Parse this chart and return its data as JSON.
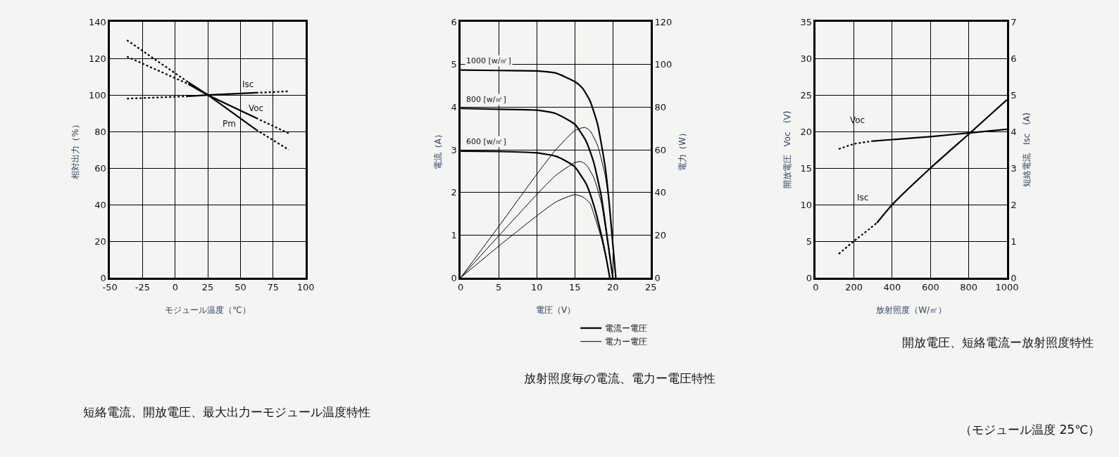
{
  "chart_data": [
    {
      "type": "line",
      "title": "短絡電流、開放電圧、最大出力ーモジュール温度特性",
      "xlabel": "モジュール温度（℃）",
      "ylabel": "相対出力（%）",
      "xlim": [
        -50,
        100
      ],
      "xticks": [
        -50,
        -25,
        0,
        25,
        50,
        75,
        100
      ],
      "ylim": [
        0,
        140
      ],
      "yticks": [
        0,
        20,
        40,
        60,
        80,
        100,
        120,
        140
      ],
      "grid": true,
      "marker": "none",
      "series": [
        {
          "color": "#000000",
          "line_style": "dotted",
          "x": [
            -37,
            10
          ],
          "values": [
            98,
            99.3
          ]
        },
        {
          "color": "#000000",
          "line_style": "solid",
          "x": [
            10,
            25,
            62
          ],
          "values": [
            99.3,
            100,
            101.2
          ]
        },
        {
          "color": "#000000",
          "line_style": "dotted",
          "x": [
            62,
            87
          ],
          "values": [
            101.2,
            102
          ]
        },
        {
          "color": "#000000",
          "line_style": "dotted",
          "x": [
            -37,
            10
          ],
          "values": [
            121,
            106
          ]
        },
        {
          "color": "#000000",
          "line_style": "solid",
          "x": [
            10,
            25,
            62
          ],
          "values": [
            106,
            100,
            87.4
          ]
        },
        {
          "color": "#000000",
          "line_style": "dotted",
          "x": [
            62,
            87
          ],
          "values": [
            87.4,
            79
          ]
        },
        {
          "color": "#000000",
          "line_style": "dotted",
          "x": [
            -37,
            10
          ],
          "values": [
            130,
            107
          ]
        },
        {
          "color": "#000000",
          "line_style": "solid",
          "x": [
            10,
            25,
            62
          ],
          "values": [
            107,
            100,
            81
          ]
        },
        {
          "color": "#000000",
          "line_style": "dotted",
          "x": [
            62,
            87
          ],
          "values": [
            81,
            70
          ]
        }
      ],
      "annotations": [
        {
          "text": "Isc",
          "x": 62,
          "y": 101.2
        },
        {
          "text": "Voc",
          "x": 62,
          "y": 87.4
        },
        {
          "text": "Pm",
          "x": 62,
          "y": 81
        }
      ]
    },
    {
      "type": "line",
      "title": "放射照度毎の電流、電力ー電圧特性",
      "xlabel": "電圧（V）",
      "ylabel": "電流（A）",
      "y2label": "電力（W）",
      "xlim": [
        0,
        25
      ],
      "xticks": [
        0,
        5,
        10,
        15,
        20,
        25
      ],
      "ylim": [
        0,
        6
      ],
      "yticks": [
        0,
        1,
        2,
        3,
        4,
        5,
        6
      ],
      "y2lim": [
        0,
        120
      ],
      "y2ticks": [
        0,
        20,
        40,
        60,
        80,
        100,
        120
      ],
      "grid": true,
      "marker": "none",
      "legend": "bottom right",
      "series": [
        {
          "name": "電流ー電圧",
          "color": "#000000",
          "line_style": "solid",
          "x": [
            0,
            5,
            10,
            12.5,
            15,
            16,
            17,
            18,
            19,
            19.5,
            20,
            20.4
          ],
          "values": [
            4.87,
            4.86,
            4.85,
            4.8,
            4.6,
            4.45,
            4.15,
            3.6,
            2.6,
            1.8,
            0.8,
            0
          ]
        },
        {
          "color": "#000000",
          "line_style": "solid",
          "x": [
            0,
            5,
            10,
            12.5,
            15,
            16.5,
            17.5,
            18.5,
            19.3,
            20.0
          ],
          "values": [
            3.97,
            3.95,
            3.93,
            3.85,
            3.6,
            3.2,
            2.7,
            1.9,
            0.9,
            0
          ]
        },
        {
          "color": "#000000",
          "line_style": "solid",
          "x": [
            0,
            5,
            10,
            12.5,
            14,
            15,
            16.5,
            17.5,
            18.5,
            19.2,
            19.6
          ],
          "values": [
            2.97,
            2.96,
            2.93,
            2.85,
            2.72,
            2.6,
            2.2,
            1.7,
            1.0,
            0.4,
            0
          ]
        },
        {
          "name": "電力ー電圧",
          "color": "#000000",
          "line_style": "solid",
          "axis": "y2",
          "x": [
            0,
            5,
            10,
            12.5,
            15,
            16.3,
            17,
            18,
            19,
            19.5,
            20,
            20.4
          ],
          "values": [
            0,
            24,
            48.5,
            60,
            69,
            70.5,
            69,
            62,
            48,
            36,
            16,
            0
          ]
        },
        {
          "color": "#000000",
          "line_style": "solid",
          "axis": "y2",
          "x": [
            0,
            5,
            10,
            12.5,
            15,
            15.8,
            16.5,
            17.5,
            18.5,
            19.3,
            20.0
          ],
          "values": [
            0,
            19.6,
            39,
            48,
            54,
            54.5,
            53,
            47,
            35,
            17,
            0
          ]
        },
        {
          "color": "#000000",
          "line_style": "solid",
          "axis": "y2",
          "x": [
            0,
            5,
            10,
            12.5,
            15,
            16,
            17,
            17.5,
            18.5,
            19.2,
            19.6
          ],
          "values": [
            0,
            14.8,
            29,
            35.5,
            39,
            38,
            35,
            30,
            18.5,
            8,
            0
          ]
        }
      ],
      "annotations": [
        {
          "text": "1000 [w/㎡]",
          "x": 0,
          "y": 4.87
        },
        {
          "text": "800 [w/㎡]",
          "x": 0,
          "y": 3.97
        },
        {
          "text": "600 [w/㎡]",
          "x": 0,
          "y": 2.97
        }
      ]
    },
    {
      "type": "line",
      "title": "開放電圧、短絡電流ー放射照度特性",
      "xlabel": "放射照度（W/㎡）",
      "ylabel": "開放電圧　Voc　(V)",
      "y2label": "短絡電流　Isc　(A)",
      "xlim": [
        0,
        1000
      ],
      "xticks": [
        0,
        200,
        400,
        600,
        800,
        1000
      ],
      "ylim": [
        0,
        35
      ],
      "yticks": [
        0,
        5,
        10,
        15,
        20,
        25,
        30,
        35
      ],
      "y2lim": [
        0,
        7
      ],
      "y2ticks": [
        0,
        1,
        2,
        3,
        4,
        5,
        6,
        7
      ],
      "grid": true,
      "marker": "none",
      "series": [
        {
          "color": "#000000",
          "line_style": "dotted",
          "x": [
            120,
            200,
            300
          ],
          "values": [
            17.6,
            18.3,
            18.7
          ]
        },
        {
          "color": "#000000",
          "line_style": "solid",
          "x": [
            300,
            400,
            600,
            800,
            1000
          ],
          "values": [
            18.7,
            18.9,
            19.3,
            19.8,
            20.3
          ]
        },
        {
          "color": "#000000",
          "line_style": "dotted",
          "axis": "y2",
          "x": [
            120,
            200,
            320
          ],
          "values": [
            0.65,
            1.0,
            1.5
          ]
        },
        {
          "color": "#000000",
          "line_style": "solid",
          "axis": "y2",
          "x": [
            320,
            400,
            600,
            800,
            1000
          ],
          "values": [
            1.5,
            2.0,
            3.0,
            3.93,
            4.87
          ]
        }
      ],
      "annotations": [
        {
          "text": "Voc",
          "x": 300,
          "y": 18.7
        },
        {
          "text": "Isc",
          "x": 400,
          "y": 10
        },
        "（モジュール温度 25℃）"
      ]
    }
  ]
}
